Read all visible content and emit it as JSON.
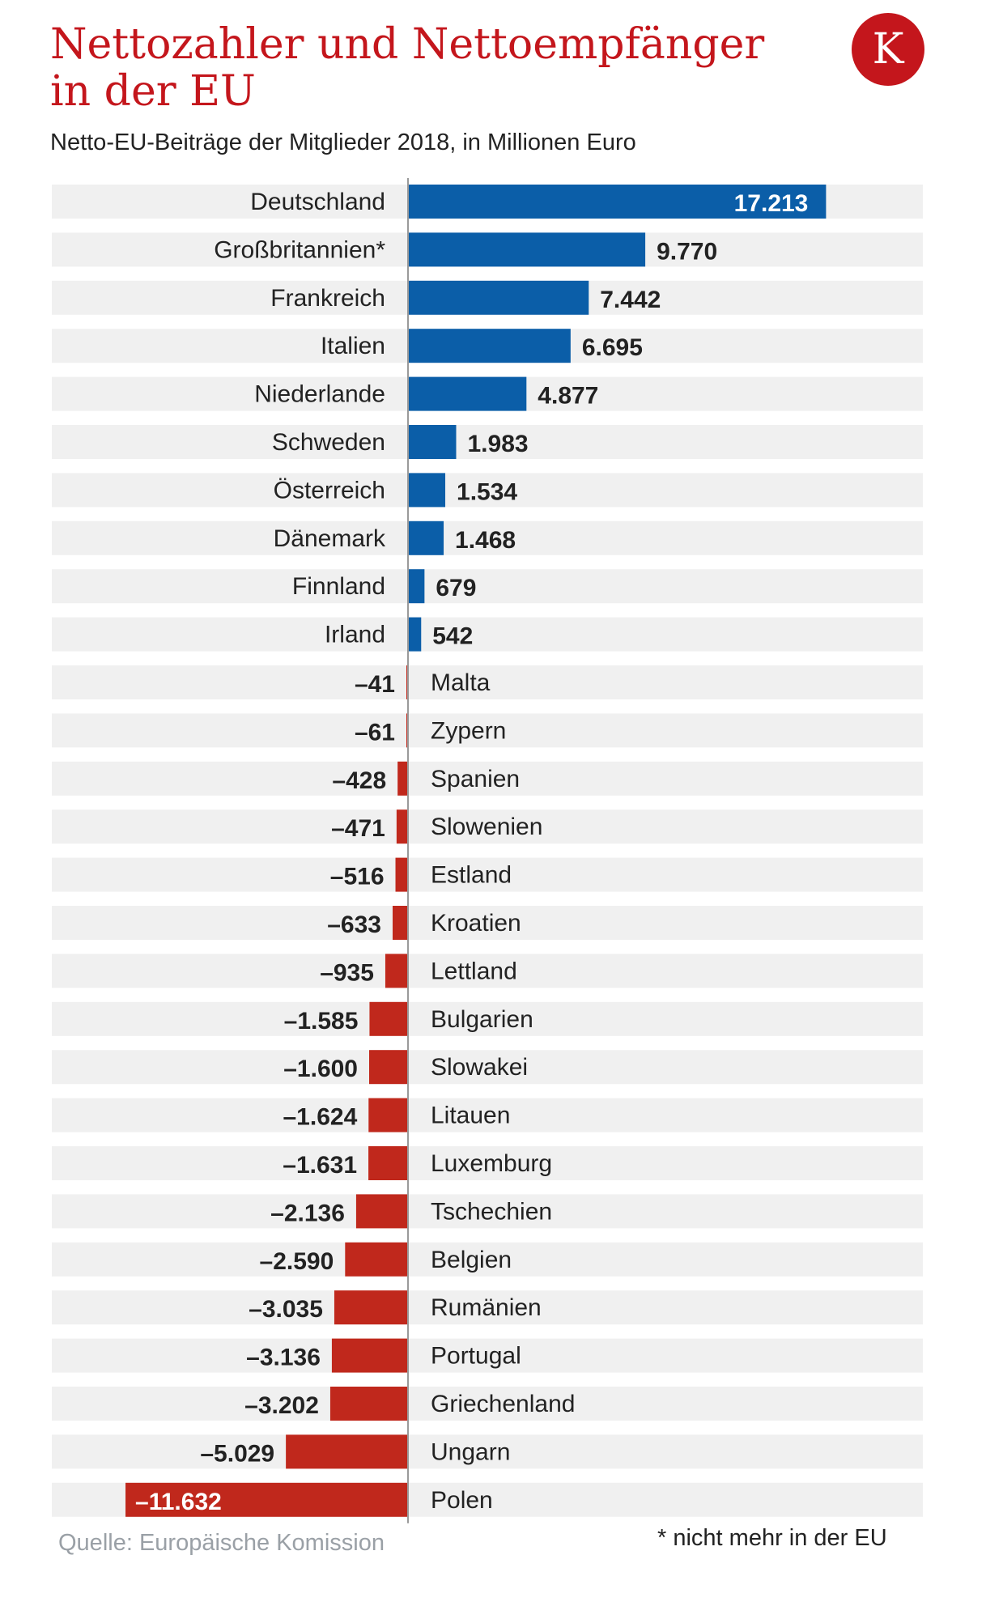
{
  "header": {
    "title": "Nettozahler und Nettoempfänger in der EU",
    "subtitle": "Netto-EU-Beiträge der Mitglieder 2018, in Millionen Euro",
    "logo_letter": "K"
  },
  "footer": {
    "source": "Quelle: Europäische Komission",
    "footnote": "* nicht mehr in der EU"
  },
  "colors": {
    "positive": "#0b5ea8",
    "negative": "#c0281c",
    "row_background": "#f0f0f0",
    "accent": "#c4161c"
  },
  "chart_data": {
    "type": "bar",
    "orientation": "horizontal",
    "title": "Nettozahler und Nettoempfänger in der EU",
    "subtitle": "Netto-EU-Beiträge der Mitglieder 2018, in Millionen Euro",
    "categories": [
      "Deutschland",
      "Großbritannien*",
      "Frankreich",
      "Italien",
      "Niederlande",
      "Schweden",
      "Österreich",
      "Dänemark",
      "Finnland",
      "Irland",
      "Malta",
      "Zypern",
      "Spanien",
      "Slowenien",
      "Estland",
      "Kroatien",
      "Lettland",
      "Bulgarien",
      "Slowakei",
      "Litauen",
      "Luxemburg",
      "Tschechien",
      "Belgien",
      "Rumänien",
      "Portugal",
      "Griechenland",
      "Ungarn",
      "Polen"
    ],
    "values": [
      17213,
      9770,
      7442,
      6695,
      4877,
      1983,
      1534,
      1468,
      679,
      542,
      -41,
      -61,
      -428,
      -471,
      -516,
      -633,
      -935,
      -1585,
      -1600,
      -1624,
      -1631,
      -2136,
      -2590,
      -3035,
      -3136,
      -3202,
      -5029,
      -11632
    ],
    "value_labels": [
      "17.213",
      "9.770",
      "7.442",
      "6.695",
      "4.877",
      "1.983",
      "1.534",
      "1.468",
      "679",
      "542",
      "–41",
      "–61",
      "–428",
      "–471",
      "–516",
      "–633",
      "–935",
      "–1.585",
      "–1.600",
      "–1.624",
      "–1.631",
      "–2.136",
      "–2.590",
      "–3.035",
      "–3.136",
      "–3.202",
      "–5.029",
      "–11.632"
    ],
    "xlim": [
      -12000,
      17800
    ],
    "grid": false,
    "legend": "none"
  }
}
